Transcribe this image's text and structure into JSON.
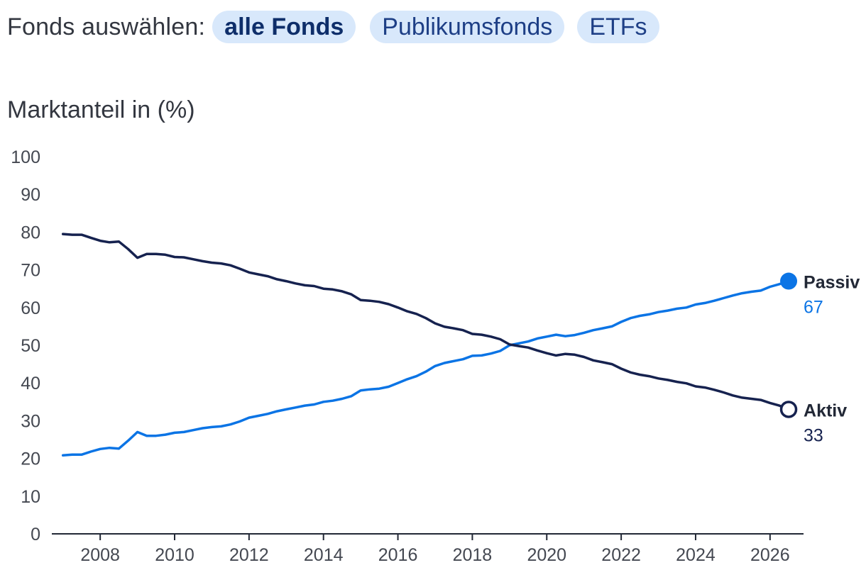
{
  "filter": {
    "label": "Fonds auswählen:",
    "options": [
      {
        "label": "alle Fonds",
        "active": true
      },
      {
        "label": "Publikumsfonds",
        "active": false
      },
      {
        "label": "ETFs",
        "active": false
      }
    ]
  },
  "colors": {
    "passiv": "#0b74e5",
    "aktiv": "#16224f",
    "chip_bg": "#d8e8fb",
    "axis": "#222836"
  },
  "chart_data": {
    "type": "line",
    "ylabel": "Marktanteil in (%)",
    "ylim": [
      0,
      100
    ],
    "yticks": [
      0,
      10,
      20,
      30,
      40,
      50,
      60,
      70,
      80,
      90,
      100
    ],
    "xlim": [
      2006.7,
      2026.9
    ],
    "xticks": [
      2008,
      2010,
      2012,
      2014,
      2016,
      2018,
      2020,
      2022,
      2024,
      2026
    ],
    "series": [
      {
        "name": "Passiv",
        "color": "#0b74e5",
        "end_value": "67",
        "marker": "filled",
        "x": [
          2007.0,
          2007.25,
          2007.5,
          2007.75,
          2008.0,
          2008.25,
          2008.5,
          2008.75,
          2009.0,
          2009.25,
          2009.5,
          2009.75,
          2010.0,
          2010.25,
          2010.5,
          2010.75,
          2011.0,
          2011.25,
          2011.5,
          2011.75,
          2012.0,
          2012.25,
          2012.5,
          2012.75,
          2013.0,
          2013.25,
          2013.5,
          2013.75,
          2014.0,
          2014.25,
          2014.5,
          2014.75,
          2015.0,
          2015.25,
          2015.5,
          2015.75,
          2016.0,
          2016.25,
          2016.5,
          2016.75,
          2017.0,
          2017.25,
          2017.5,
          2017.75,
          2018.0,
          2018.25,
          2018.5,
          2018.75,
          2019.0,
          2019.25,
          2019.5,
          2019.75,
          2020.0,
          2020.25,
          2020.5,
          2020.75,
          2021.0,
          2021.25,
          2021.5,
          2021.75,
          2022.0,
          2022.25,
          2022.5,
          2022.75,
          2023.0,
          2023.25,
          2023.5,
          2023.75,
          2024.0,
          2024.25,
          2024.5,
          2024.75,
          2025.0,
          2025.25,
          2025.5,
          2025.75,
          2026.0,
          2026.25,
          2026.5
        ],
        "values": [
          20.8,
          21.0,
          21.0,
          21.8,
          22.5,
          22.8,
          22.6,
          24.7,
          27.0,
          26.0,
          26.0,
          26.3,
          26.8,
          27.0,
          27.5,
          28.0,
          28.3,
          28.5,
          29.0,
          29.8,
          30.8,
          31.3,
          31.8,
          32.5,
          33.0,
          33.5,
          34.0,
          34.3,
          35.0,
          35.3,
          35.8,
          36.5,
          38.0,
          38.3,
          38.5,
          39.0,
          40.0,
          41.0,
          41.8,
          43.0,
          44.5,
          45.3,
          45.8,
          46.3,
          47.2,
          47.3,
          47.8,
          48.5,
          50.0,
          50.5,
          51.0,
          51.8,
          52.3,
          52.8,
          52.4,
          52.7,
          53.3,
          54.0,
          54.5,
          55.0,
          56.2,
          57.2,
          57.8,
          58.2,
          58.8,
          59.2,
          59.7,
          60.0,
          60.8,
          61.2,
          61.8,
          62.5,
          63.2,
          63.8,
          64.2,
          64.5,
          65.5,
          66.2,
          67.0
        ]
      },
      {
        "name": "Aktiv",
        "color": "#16224f",
        "end_value": "33",
        "marker": "hollow",
        "x": [
          2007.0,
          2007.25,
          2007.5,
          2007.75,
          2008.0,
          2008.25,
          2008.5,
          2008.75,
          2009.0,
          2009.25,
          2009.5,
          2009.75,
          2010.0,
          2010.25,
          2010.5,
          2010.75,
          2011.0,
          2011.25,
          2011.5,
          2011.75,
          2012.0,
          2012.25,
          2012.5,
          2012.75,
          2013.0,
          2013.25,
          2013.5,
          2013.75,
          2014.0,
          2014.25,
          2014.5,
          2014.75,
          2015.0,
          2015.25,
          2015.5,
          2015.75,
          2016.0,
          2016.25,
          2016.5,
          2016.75,
          2017.0,
          2017.25,
          2017.5,
          2017.75,
          2018.0,
          2018.25,
          2018.5,
          2018.75,
          2019.0,
          2019.25,
          2019.5,
          2019.75,
          2020.0,
          2020.25,
          2020.5,
          2020.75,
          2021.0,
          2021.25,
          2021.5,
          2021.75,
          2022.0,
          2022.25,
          2022.5,
          2022.75,
          2023.0,
          2023.25,
          2023.5,
          2023.75,
          2024.0,
          2024.25,
          2024.5,
          2024.75,
          2025.0,
          2025.25,
          2025.5,
          2025.75,
          2026.0,
          2026.25,
          2026.5
        ],
        "values": [
          79.5,
          79.3,
          79.3,
          78.5,
          77.7,
          77.3,
          77.5,
          75.5,
          73.2,
          74.2,
          74.2,
          74.0,
          73.4,
          73.3,
          72.8,
          72.3,
          71.9,
          71.7,
          71.2,
          70.3,
          69.3,
          68.8,
          68.3,
          67.5,
          67.0,
          66.4,
          65.9,
          65.7,
          65.0,
          64.8,
          64.3,
          63.5,
          62.0,
          61.8,
          61.5,
          60.9,
          60.0,
          59.0,
          58.3,
          57.2,
          55.8,
          54.9,
          54.5,
          54.0,
          53.0,
          52.8,
          52.3,
          51.6,
          50.2,
          49.8,
          49.4,
          48.6,
          47.9,
          47.3,
          47.7,
          47.5,
          46.9,
          46.0,
          45.5,
          45.0,
          43.8,
          42.8,
          42.2,
          41.8,
          41.2,
          40.8,
          40.3,
          39.9,
          39.1,
          38.8,
          38.2,
          37.5,
          36.7,
          36.1,
          35.8,
          35.5,
          34.7,
          34.0,
          33.0
        ]
      }
    ]
  }
}
